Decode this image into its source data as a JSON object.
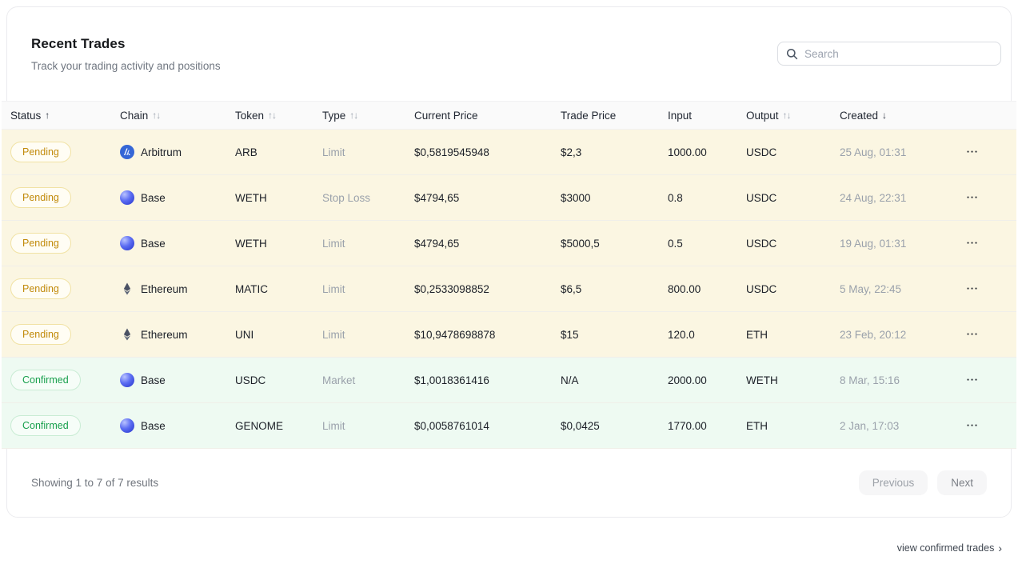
{
  "page": {
    "title": "Recent Trades",
    "subtitle": "Track your trading activity and positions",
    "search_placeholder": "Search",
    "showing_text": "Showing 1 to 7 of 7 results",
    "prev_label": "Previous",
    "next_label": "Next",
    "view_link_label": "view confirmed trades",
    "view_link_chevron": "›"
  },
  "glyphs": {
    "sort_asc": "↑",
    "sort_desc": "↓",
    "sort_both": "↑↓",
    "menu_dots": "●●●"
  },
  "colors": {
    "pending_text": "#c18a0a",
    "pending_row_bg": "#fbf6e2",
    "confirmed_text": "#18a04d",
    "confirmed_row_bg": "#eefaf2",
    "header_row_bg": "#fafafa"
  },
  "table": {
    "columns": [
      {
        "label": "Status",
        "sort": "asc"
      },
      {
        "label": "Chain",
        "sort": "both"
      },
      {
        "label": "Token",
        "sort": "both"
      },
      {
        "label": "Type",
        "sort": "both"
      },
      {
        "label": "Current Price",
        "sort": "none"
      },
      {
        "label": "Trade Price",
        "sort": "none"
      },
      {
        "label": "Input",
        "sort": "none"
      },
      {
        "label": "Output",
        "sort": "both"
      },
      {
        "label": "Created",
        "sort": "desc"
      },
      {
        "label": "",
        "sort": "none"
      }
    ],
    "rows": [
      {
        "status": "Pending",
        "chain": "Arbitrum",
        "token": "ARB",
        "type": "Limit",
        "current_price": "$0,5819545948",
        "trade_price": "$2,3",
        "input": "1000.00",
        "output": "USDC",
        "created": "25 Aug, 01:31"
      },
      {
        "status": "Pending",
        "chain": "Base",
        "token": "WETH",
        "type": "Stop Loss",
        "current_price": "$4794,65",
        "trade_price": "$3000",
        "input": "0.8",
        "output": "USDC",
        "created": "24 Aug, 22:31"
      },
      {
        "status": "Pending",
        "chain": "Base",
        "token": "WETH",
        "type": "Limit",
        "current_price": "$4794,65",
        "trade_price": "$5000,5",
        "input": "0.5",
        "output": "USDC",
        "created": "19 Aug, 01:31"
      },
      {
        "status": "Pending",
        "chain": "Ethereum",
        "token": "MATIC",
        "type": "Limit",
        "current_price": "$0,2533098852",
        "trade_price": "$6,5",
        "input": "800.00",
        "output": "USDC",
        "created": "5 May, 22:45"
      },
      {
        "status": "Pending",
        "chain": "Ethereum",
        "token": "UNI",
        "type": "Limit",
        "current_price": "$10,9478698878",
        "trade_price": "$15",
        "input": "120.0",
        "output": "ETH",
        "created": "23 Feb, 20:12"
      },
      {
        "status": "Confirmed",
        "chain": "Base",
        "token": "USDC",
        "type": "Market",
        "current_price": "$1,0018361416",
        "trade_price": "N/A",
        "input": "2000.00",
        "output": "WETH",
        "created": "8 Mar, 15:16"
      },
      {
        "status": "Confirmed",
        "chain": "Base",
        "token": "GENOME",
        "type": "Limit",
        "current_price": "$0,0058761014",
        "trade_price": "$0,0425",
        "input": "1770.00",
        "output": "ETH",
        "created": "2 Jan, 17:03"
      }
    ]
  }
}
